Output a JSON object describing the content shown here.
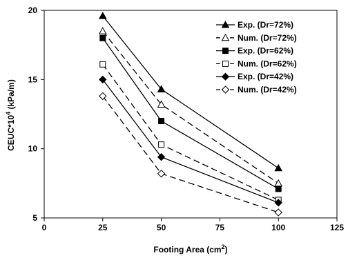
{
  "chart_data": {
    "type": "line",
    "xlabel_main": "Footing Area (cm",
    "xlabel_sup": "2",
    "xlabel_end": ")",
    "ylabel_main": "CEUC*10",
    "ylabel_sup": "4",
    "ylabel_end": " (kPa/m)",
    "xlim": [
      0,
      125
    ],
    "ylim": [
      5,
      20
    ],
    "xticks": [
      0,
      25,
      50,
      75,
      100,
      125
    ],
    "yticks": [
      5,
      10,
      15,
      20
    ],
    "grid": false,
    "legend_position": "top-right",
    "x": [
      25,
      50,
      100
    ],
    "series": [
      {
        "name": "Exp. (Dr=72%)",
        "values": [
          19.6,
          14.3,
          8.6
        ],
        "marker": "triangle",
        "fill": "filled",
        "dash": "solid"
      },
      {
        "name": "Num. (Dr=72%)",
        "values": [
          18.5,
          13.2,
          7.5
        ],
        "marker": "triangle",
        "fill": "open",
        "dash": "dashed"
      },
      {
        "name": "Exp. (Dr=62%)",
        "values": [
          18.0,
          12.0,
          7.1
        ],
        "marker": "square",
        "fill": "filled",
        "dash": "solid"
      },
      {
        "name": "Num. (Dr=62%)",
        "values": [
          16.1,
          10.3,
          6.3
        ],
        "marker": "square",
        "fill": "open",
        "dash": "dashed"
      },
      {
        "name": "Exp. (Dr=42%)",
        "values": [
          15.0,
          9.4,
          6.1
        ],
        "marker": "diamond",
        "fill": "filled",
        "dash": "solid"
      },
      {
        "name": "Num. (Dr=42%)",
        "values": [
          13.8,
          8.2,
          5.4
        ],
        "marker": "diamond",
        "fill": "open",
        "dash": "dashed"
      }
    ]
  }
}
